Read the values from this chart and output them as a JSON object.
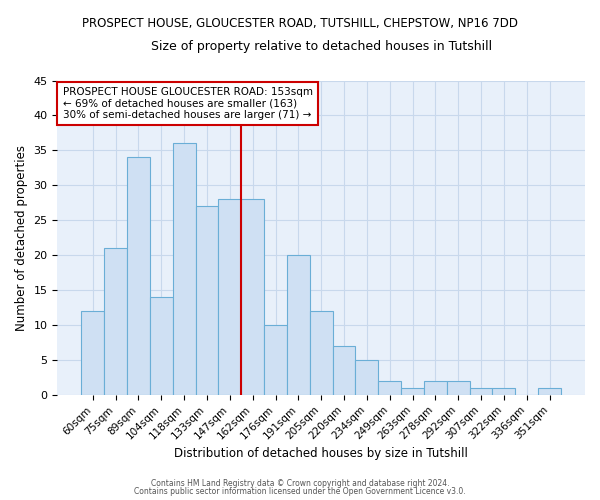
{
  "title1": "PROSPECT HOUSE, GLOUCESTER ROAD, TUTSHILL, CHEPSTOW, NP16 7DD",
  "title2": "Size of property relative to detached houses in Tutshill",
  "xlabel": "Distribution of detached houses by size in Tutshill",
  "ylabel": "Number of detached properties",
  "categories": [
    "60sqm",
    "75sqm",
    "89sqm",
    "104sqm",
    "118sqm",
    "133sqm",
    "147sqm",
    "162sqm",
    "176sqm",
    "191sqm",
    "205sqm",
    "220sqm",
    "234sqm",
    "249sqm",
    "263sqm",
    "278sqm",
    "292sqm",
    "307sqm",
    "322sqm",
    "336sqm",
    "351sqm"
  ],
  "values": [
    12,
    21,
    34,
    14,
    36,
    27,
    28,
    28,
    10,
    20,
    12,
    7,
    5,
    2,
    1,
    2,
    2,
    1,
    1,
    0,
    1
  ],
  "bar_color": "#cfe0f3",
  "bar_edge_color": "#6aaed6",
  "vline_x_index": 7,
  "vline_color": "#cc0000",
  "annotation_text": "PROSPECT HOUSE GLOUCESTER ROAD: 153sqm\n← 69% of detached houses are smaller (163)\n30% of semi-detached houses are larger (71) →",
  "annotation_box_color": "#ffffff",
  "annotation_box_edge": "#cc0000",
  "ylim": [
    0,
    45
  ],
  "yticks": [
    0,
    5,
    10,
    15,
    20,
    25,
    30,
    35,
    40,
    45
  ],
  "footer1": "Contains HM Land Registry data © Crown copyright and database right 2024.",
  "footer2": "Contains public sector information licensed under the Open Government Licence v3.0.",
  "bg_color": "#e8f0fa",
  "fig_bg_color": "#ffffff",
  "grid_color": "#c8d8ec"
}
